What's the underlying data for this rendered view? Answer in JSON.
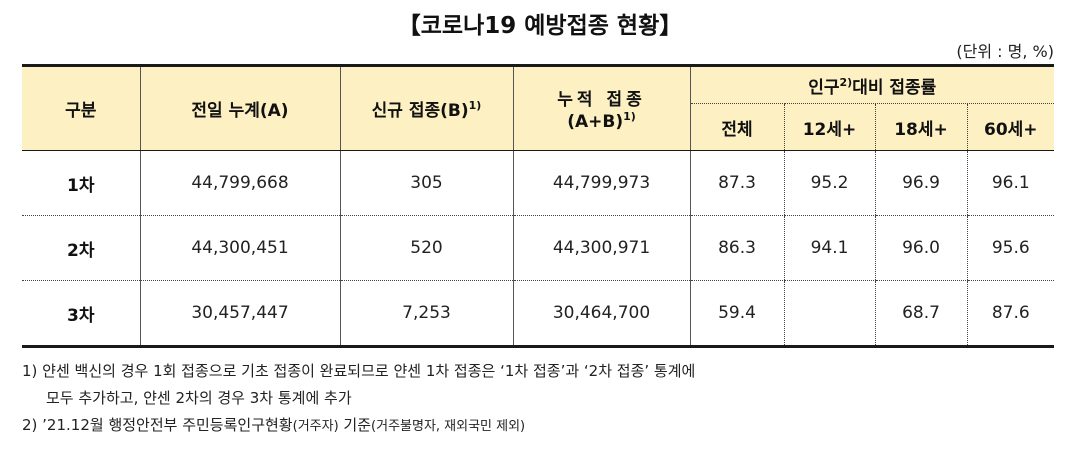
{
  "title": "【코로나19 예방접종 현황】",
  "unit": "(단위 : 명, %)",
  "headers": {
    "category": "구분",
    "previous_cumulative": "전일 누계(A)",
    "new_label": "신규 접종(B)",
    "new_sup": "1)",
    "cumulative_line1": "누적 접종",
    "cumulative_line2": "(A+B)",
    "cumulative_sup": "1)",
    "population_prefix": "인구",
    "population_sup": "2)",
    "population_suffix": "대비 접종률",
    "sub": [
      "전체",
      "12세+",
      "18세+",
      "60세+"
    ]
  },
  "rows": [
    {
      "label": "1차",
      "previous": "44,799,668",
      "new": "305",
      "cumulative": "44,799,973",
      "rates": [
        "87.3",
        "95.2",
        "96.9",
        "96.1"
      ]
    },
    {
      "label": "2차",
      "previous": "44,300,451",
      "new": "520",
      "cumulative": "44,300,971",
      "rates": [
        "86.3",
        "94.1",
        "96.0",
        "95.6"
      ]
    },
    {
      "label": "3차",
      "previous": "30,457,447",
      "new": "7,253",
      "cumulative": "30,464,700",
      "rates": [
        "59.4",
        "",
        "68.7",
        "87.6"
      ]
    }
  ],
  "notes": {
    "note1_line1": "1) 얀센 백신의 경우 1회 접종으로 기초 접종이 완료되므로 얀센 1차 접종은 ‘1차 접종’과 ‘2차 접종’ 통계에",
    "note1_line2": "모두 추가하고, 얀센 2차의 경우 3차 통계에 추가",
    "note2_main": "2) ’21.12월 행정안전부 주민등록인구현황",
    "note2_small1": "(거주자)",
    "note2_mid": " 기준",
    "note2_small2": "(거주불명자, 재외국민 제외)"
  }
}
